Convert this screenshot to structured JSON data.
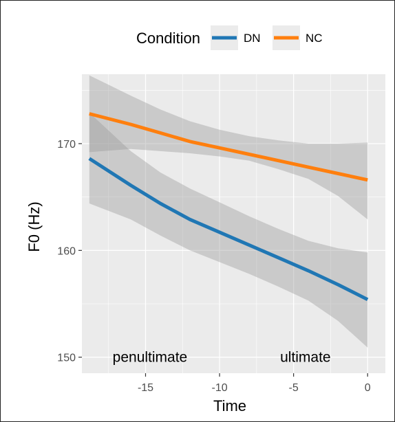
{
  "chart_data": {
    "type": "line",
    "xlabel": "Time",
    "ylabel": "F0 (Hz)",
    "xlim": [
      -19.3,
      1.2
    ],
    "ylim": [
      148.5,
      176.5
    ],
    "x_ticks": [
      -15,
      -10,
      -5,
      0
    ],
    "x_tick_labels": [
      "-15",
      "-10",
      "-5",
      "0"
    ],
    "y_ticks": [
      150,
      160,
      170
    ],
    "y_tick_labels": [
      "150",
      "160",
      "170"
    ],
    "grid": true,
    "legend": {
      "title": "Condition",
      "position": "top",
      "entries": [
        "DN",
        "NC"
      ]
    },
    "series": [
      {
        "name": "DN",
        "color": "#2077b4",
        "x": [
          -18.8,
          -16,
          -14,
          -12,
          -10,
          -8,
          -6,
          -4,
          -2,
          0
        ],
        "y": [
          168.6,
          166.1,
          164.4,
          162.9,
          161.7,
          160.5,
          159.3,
          158.1,
          156.8,
          155.4
        ],
        "ci_lower": [
          164.4,
          162.9,
          161.4,
          160.0,
          158.9,
          157.8,
          156.6,
          155.3,
          153.4,
          150.9
        ],
        "ci_upper": [
          172.9,
          169.3,
          167.3,
          165.8,
          164.5,
          163.2,
          162.0,
          160.9,
          160.2,
          159.8
        ]
      },
      {
        "name": "NC",
        "color": "#ff7f0e",
        "x": [
          -18.8,
          -16,
          -14,
          -12,
          -10,
          -8,
          -6,
          -4,
          -2,
          0
        ],
        "y": [
          172.8,
          171.8,
          171.0,
          170.2,
          169.6,
          169.0,
          168.4,
          167.8,
          167.2,
          166.6
        ],
        "ci_lower": [
          169.2,
          169.5,
          169.3,
          169.1,
          168.8,
          168.4,
          167.6,
          166.7,
          165.1,
          162.9
        ],
        "ci_upper": [
          176.4,
          174.5,
          173.2,
          172.1,
          171.3,
          170.7,
          170.3,
          170.0,
          170.0,
          170.1
        ]
      }
    ],
    "annotations": [
      {
        "text": "penultimate",
        "x": -14.7,
        "y": 150
      },
      {
        "text": "ultimate",
        "x": -4.2,
        "y": 150
      }
    ]
  },
  "colors": {
    "panel_background": "#ebebeb",
    "grid_major": "#ffffff",
    "ribbon": "#999999"
  }
}
